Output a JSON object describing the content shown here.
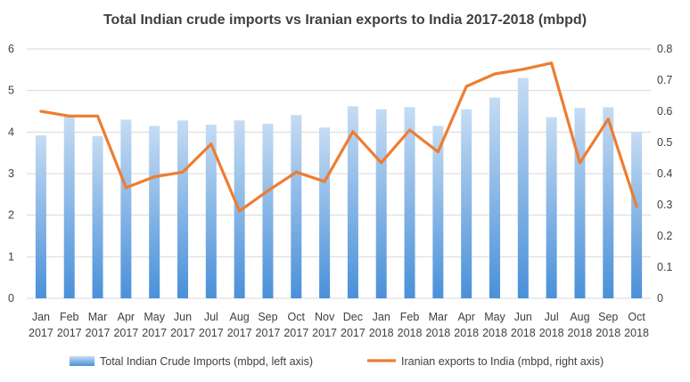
{
  "chart_data": {
    "type": "bar",
    "title": "Total Indian crude imports vs Iranian exports to India 2017-2018 (mbpd)",
    "categories": [
      [
        "Jan",
        "2017"
      ],
      [
        "Feb",
        "2017"
      ],
      [
        "Mar",
        "2017"
      ],
      [
        "Apr",
        "2017"
      ],
      [
        "May",
        "2017"
      ],
      [
        "Jun",
        "2017"
      ],
      [
        "Jul",
        "2017"
      ],
      [
        "Aug",
        "2017"
      ],
      [
        "Sep",
        "2017"
      ],
      [
        "Oct",
        "2017"
      ],
      [
        "Nov",
        "2017"
      ],
      [
        "Dec",
        "2017"
      ],
      [
        "Jan",
        "2018"
      ],
      [
        "Feb",
        "2018"
      ],
      [
        "Mar",
        "2018"
      ],
      [
        "Apr",
        "2018"
      ],
      [
        "May",
        "2018"
      ],
      [
        "Jun",
        "2018"
      ],
      [
        "Jul",
        "2018"
      ],
      [
        "Aug",
        "2018"
      ],
      [
        "Sep",
        "2018"
      ],
      [
        "Oct",
        "2018"
      ]
    ],
    "series": [
      {
        "name": "Total Indian Crude Imports (mbpd, left axis)",
        "type": "bar",
        "axis": "left",
        "color": "#5b9bd5",
        "values": [
          3.92,
          4.38,
          3.9,
          4.3,
          4.15,
          4.28,
          4.18,
          4.28,
          4.2,
          4.41,
          4.11,
          4.62,
          4.55,
          4.6,
          4.15,
          4.55,
          4.83,
          5.3,
          4.36,
          4.58,
          4.6,
          4.0
        ]
      },
      {
        "name": "Iranian exports to India (mbpd, right axis)",
        "type": "line",
        "axis": "right",
        "color": "#ed7d31",
        "values": [
          0.6,
          0.585,
          0.585,
          0.355,
          0.39,
          0.405,
          0.495,
          0.28,
          0.345,
          0.405,
          0.375,
          0.535,
          0.435,
          0.54,
          0.47,
          0.68,
          0.72,
          0.735,
          0.755,
          0.435,
          0.575,
          0.295
        ]
      }
    ],
    "y_left": {
      "ylim": [
        0,
        6
      ],
      "ticks": [
        "0",
        "1",
        "2",
        "3",
        "4",
        "5",
        "6"
      ]
    },
    "y_right": {
      "ylim": [
        0,
        0.8
      ],
      "ticks": [
        "0",
        "0.1",
        "0.2",
        "0.3",
        "0.4",
        "0.5",
        "0.6",
        "0.7",
        "0.8"
      ]
    },
    "grid": true,
    "legend": "bottom"
  }
}
